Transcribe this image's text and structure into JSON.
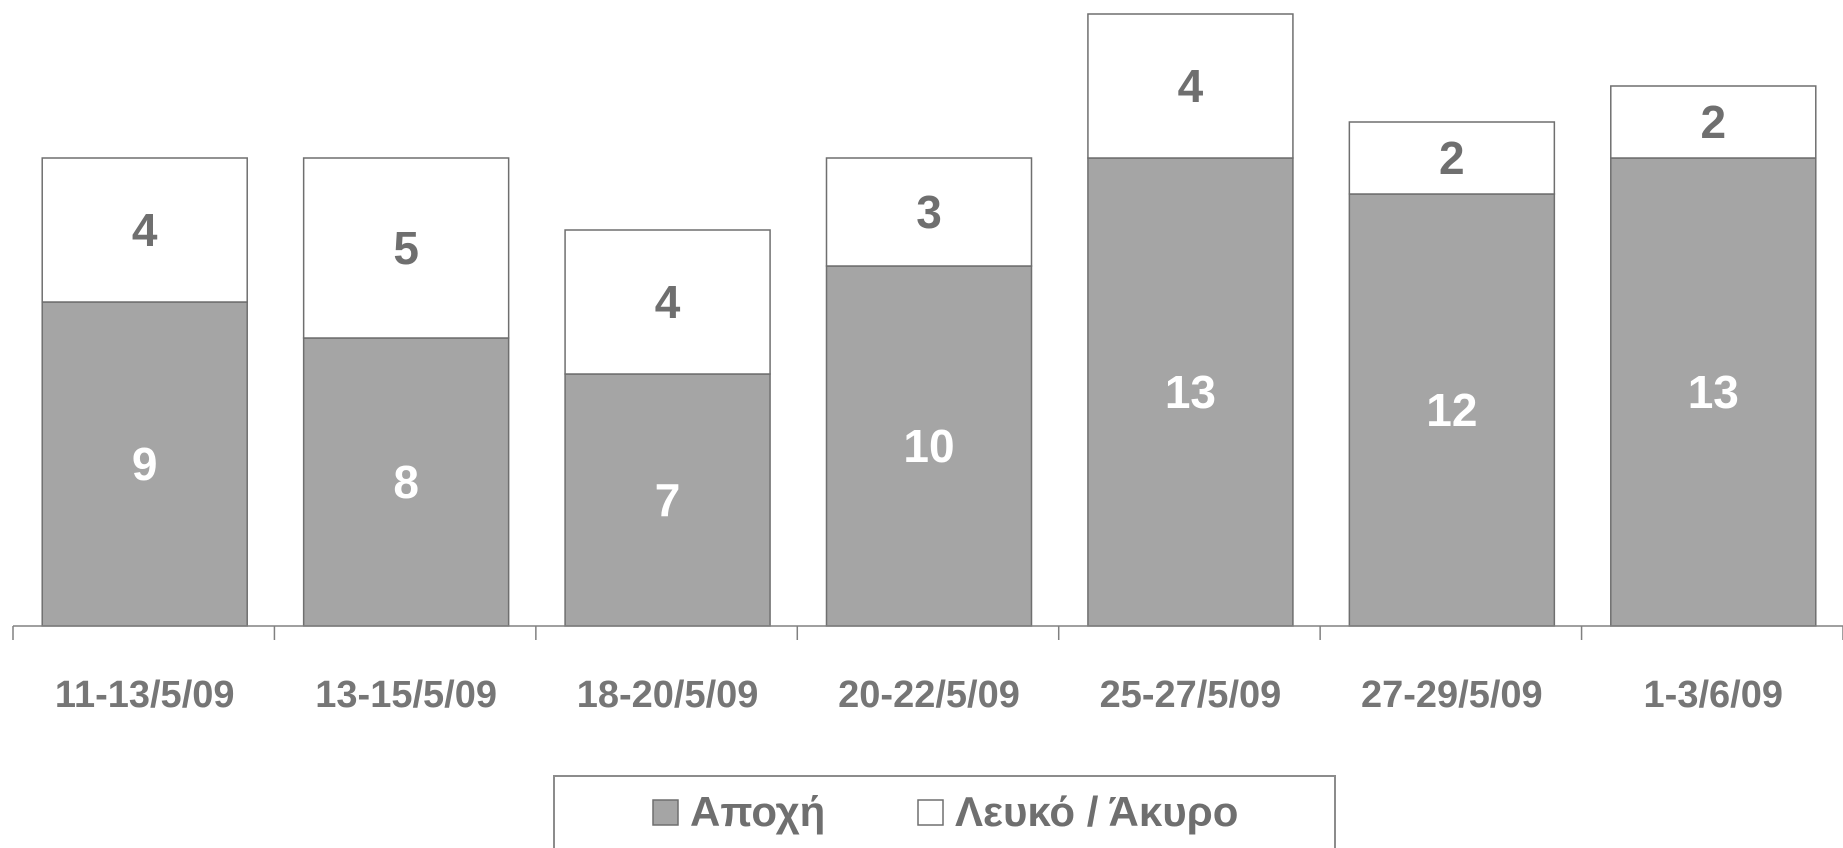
{
  "colors": {
    "abstention": "#a5a5a5",
    "blank_invalid": "#ffffff",
    "bar_outline": "#6f6f6f",
    "axis": "#808080",
    "text": "#767676"
  },
  "chart_data": {
    "type": "bar",
    "stacked": true,
    "categories": [
      "11-13/5/09",
      "13-15/5/09",
      "18-20/5/09",
      "20-22/5/09",
      "25-27/5/09",
      "27-29/5/09",
      "1-3/6/09"
    ],
    "series": [
      {
        "name": "Αποχή",
        "values": [
          9,
          8,
          7,
          10,
          13,
          12,
          13
        ]
      },
      {
        "name": "Λευκό / Άκυρο",
        "values": [
          4,
          5,
          4,
          3,
          4,
          2,
          2
        ]
      }
    ],
    "title": "",
    "xlabel": "",
    "ylabel": "",
    "ylim": [
      0,
      17
    ],
    "grid": false,
    "legend": "bottom"
  }
}
